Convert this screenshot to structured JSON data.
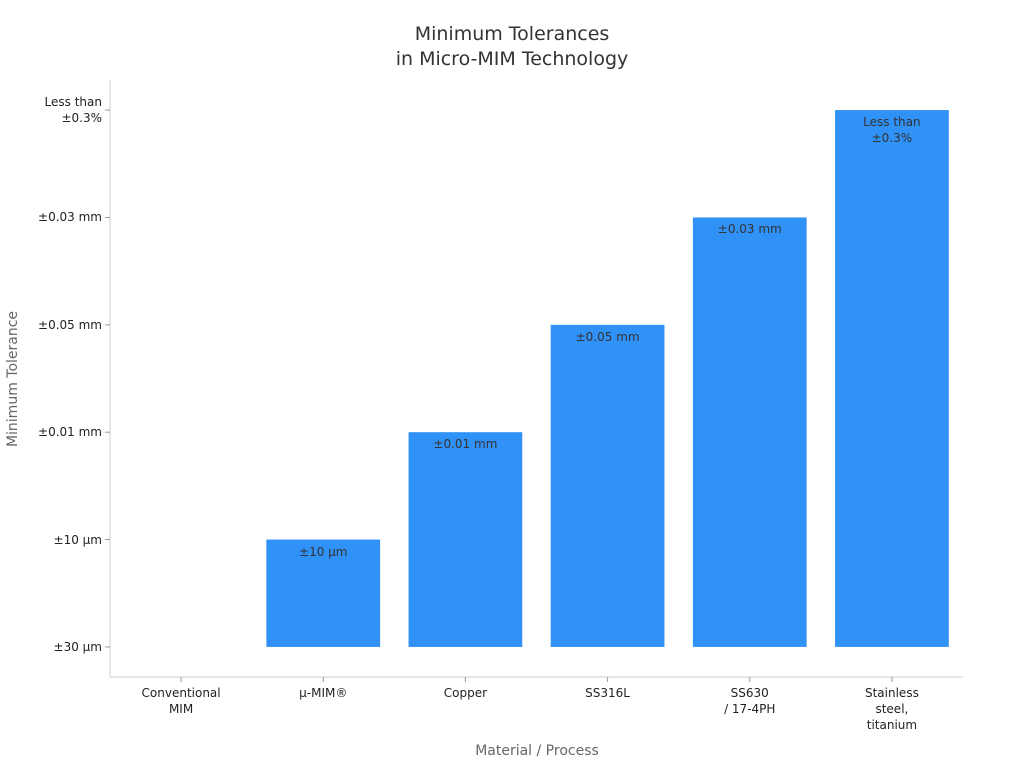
{
  "chart_data": {
    "type": "bar",
    "title": "Minimum Tolerances\nin Micro-MIM Technology",
    "x_label": "Material / Process",
    "y_label": "Minimum Tolerance",
    "categories": [
      "Conventional\nMIM",
      "μ-MIM®",
      "Copper",
      "SS316L",
      "SS630\n/ 17-4PH",
      "Stainless\nsteel,\ntitanium"
    ],
    "values": [
      0,
      1,
      2,
      3,
      4,
      5
    ],
    "color": "#3091f7",
    "ylim": [
      -0.28,
      5.28
    ],
    "yticks": [
      {
        "value": 0,
        "label": "±30 µm"
      },
      {
        "value": 1,
        "label": "±10 µm"
      },
      {
        "value": 2,
        "label": "±0.01 mm"
      },
      {
        "value": 3,
        "label": "±0.05 mm"
      },
      {
        "value": 4,
        "label": "±0.03 mm"
      },
      {
        "value": 5,
        "label": "Less than\n±0.3%"
      }
    ],
    "grid": false
  }
}
